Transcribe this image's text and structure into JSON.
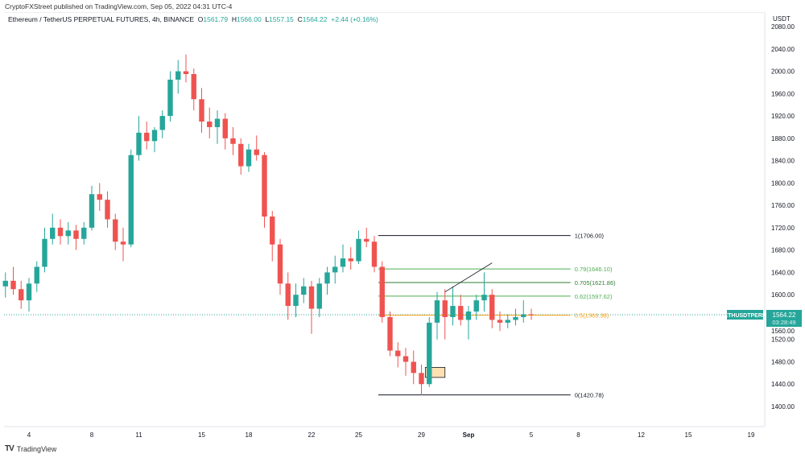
{
  "publisher_line": "CryptoFXStreet published on TradingView.com, Sep 05, 2022 04:31 UTC-4",
  "legend": {
    "symbol": "Ethereum / TetherUS PERPETUAL FUTURES, 4h, BINANCE",
    "o_label": "O",
    "o": "1561.79",
    "h_label": "H",
    "h": "1566.00",
    "l_label": "L",
    "l": "1557.15",
    "c_label": "C",
    "c": "1564.22",
    "change": "+2.44 (+0.16%)"
  },
  "branding": "TradingView",
  "colors": {
    "up": "#26a69a",
    "down": "#ef5350",
    "fib_green": "#4caf50",
    "fib_orange": "#f7a21b",
    "fib_black": "#131722",
    "box": "#ffe0b2"
  },
  "chart_data": {
    "type": "candlestick",
    "currency": "USDT",
    "ylim": [
      1380,
      2090
    ],
    "y_ticks": [
      1400,
      1440,
      1480,
      1520,
      1560,
      1600,
      1640,
      1680,
      1720,
      1760,
      1800,
      1840,
      1880,
      1920,
      1960,
      2000,
      2040,
      2080
    ],
    "x_ticks": [
      {
        "label": "4",
        "t": "Aug 4 00:00"
      },
      {
        "label": "8",
        "t": "Aug 8 00:00"
      },
      {
        "label": "11",
        "t": "Aug 11 00:00"
      },
      {
        "label": "15",
        "t": "Aug 15 00:00"
      },
      {
        "label": "18",
        "t": "Aug 18 00:00"
      },
      {
        "label": "22",
        "t": "Aug 22 00:00"
      },
      {
        "label": "25",
        "t": "Aug 25 00:00"
      },
      {
        "label": "29",
        "t": "Aug 29 00:00"
      },
      {
        "label": "Sep",
        "t": "Sep 1 00:00"
      },
      {
        "label": "5",
        "t": "Sep 5 00:00"
      },
      {
        "label": "8",
        "t": "Sep 8 00:00"
      },
      {
        "label": "12",
        "t": "Sep 12 00:00"
      },
      {
        "label": "15",
        "t": "Sep 15 00:00"
      },
      {
        "label": "19",
        "t": "Sep 19 00:00"
      }
    ],
    "last_price": {
      "symbol": "ETHUSDTPERP",
      "price": "1564.22",
      "countdown": "03:28:49",
      "value": 1564.22
    },
    "fib_levels": [
      {
        "label": "1(1706.00)",
        "value": 1706.0,
        "color": "#131722"
      },
      {
        "label": "0.79(1646.10)",
        "value": 1646.1,
        "color": "#4caf50"
      },
      {
        "label": "0.705(1621.86)",
        "value": 1621.86,
        "color": "#2e7d32"
      },
      {
        "label": "0.62(1597.62)",
        "value": 1597.62,
        "color": "#4caf50"
      },
      {
        "label": "0.5(1563.39)",
        "value": 1563.39,
        "color": "#f7a21b"
      },
      {
        "label": "0(1420.78)",
        "value": 1420.78,
        "color": "#131722"
      }
    ],
    "fib_range": {
      "start": "Aug 26 06:00",
      "end": "Sep 7 12:00"
    },
    "trendline": {
      "from": {
        "t": "Aug 30 12:00",
        "price": 1605
      },
      "to": {
        "t": "Sep 2 12:00",
        "price": 1657
      }
    },
    "box": {
      "from": {
        "t": "Aug 29 06:00",
        "price": 1470
      },
      "to": {
        "t": "Aug 30 12:00",
        "price": 1452
      }
    },
    "candles": [
      {
        "t": "Aug 2 12:00",
        "o": 1615,
        "h": 1640,
        "l": 1595,
        "c": 1625
      },
      {
        "t": "Aug 3 00:00",
        "o": 1625,
        "h": 1650,
        "l": 1600,
        "c": 1610
      },
      {
        "t": "Aug 3 12:00",
        "o": 1610,
        "h": 1625,
        "l": 1575,
        "c": 1590
      },
      {
        "t": "Aug 4 00:00",
        "o": 1590,
        "h": 1630,
        "l": 1570,
        "c": 1620
      },
      {
        "t": "Aug 4 12:00",
        "o": 1620,
        "h": 1660,
        "l": 1605,
        "c": 1650
      },
      {
        "t": "Aug 5 00:00",
        "o": 1650,
        "h": 1720,
        "l": 1640,
        "c": 1700
      },
      {
        "t": "Aug 5 12:00",
        "o": 1700,
        "h": 1745,
        "l": 1690,
        "c": 1720
      },
      {
        "t": "Aug 6 00:00",
        "o": 1720,
        "h": 1735,
        "l": 1690,
        "c": 1705
      },
      {
        "t": "Aug 6 12:00",
        "o": 1705,
        "h": 1730,
        "l": 1690,
        "c": 1715
      },
      {
        "t": "Aug 7 00:00",
        "o": 1715,
        "h": 1725,
        "l": 1680,
        "c": 1700
      },
      {
        "t": "Aug 7 12:00",
        "o": 1700,
        "h": 1730,
        "l": 1690,
        "c": 1720
      },
      {
        "t": "Aug 8 00:00",
        "o": 1720,
        "h": 1795,
        "l": 1715,
        "c": 1780
      },
      {
        "t": "Aug 8 12:00",
        "o": 1780,
        "h": 1800,
        "l": 1750,
        "c": 1770
      },
      {
        "t": "Aug 9 00:00",
        "o": 1770,
        "h": 1785,
        "l": 1720,
        "c": 1735
      },
      {
        "t": "Aug 9 12:00",
        "o": 1735,
        "h": 1745,
        "l": 1680,
        "c": 1695
      },
      {
        "t": "Aug 10 00:00",
        "o": 1695,
        "h": 1720,
        "l": 1660,
        "c": 1690
      },
      {
        "t": "Aug 10 12:00",
        "o": 1690,
        "h": 1860,
        "l": 1685,
        "c": 1850
      },
      {
        "t": "Aug 11 00:00",
        "o": 1850,
        "h": 1920,
        "l": 1840,
        "c": 1890
      },
      {
        "t": "Aug 11 12:00",
        "o": 1890,
        "h": 1910,
        "l": 1860,
        "c": 1875
      },
      {
        "t": "Aug 12 00:00",
        "o": 1875,
        "h": 1900,
        "l": 1855,
        "c": 1895
      },
      {
        "t": "Aug 12 12:00",
        "o": 1895,
        "h": 1930,
        "l": 1880,
        "c": 1920
      },
      {
        "t": "Aug 13 00:00",
        "o": 1920,
        "h": 2000,
        "l": 1910,
        "c": 1985
      },
      {
        "t": "Aug 13 12:00",
        "o": 1985,
        "h": 2020,
        "l": 1960,
        "c": 2000
      },
      {
        "t": "Aug 14 00:00",
        "o": 2000,
        "h": 2030,
        "l": 1980,
        "c": 1995
      },
      {
        "t": "Aug 14 12:00",
        "o": 1995,
        "h": 2005,
        "l": 1930,
        "c": 1950
      },
      {
        "t": "Aug 15 00:00",
        "o": 1950,
        "h": 1970,
        "l": 1890,
        "c": 1910
      },
      {
        "t": "Aug 15 12:00",
        "o": 1910,
        "h": 1935,
        "l": 1880,
        "c": 1900
      },
      {
        "t": "Aug 16 00:00",
        "o": 1900,
        "h": 1930,
        "l": 1870,
        "c": 1915
      },
      {
        "t": "Aug 16 12:00",
        "o": 1915,
        "h": 1925,
        "l": 1860,
        "c": 1880
      },
      {
        "t": "Aug 17 00:00",
        "o": 1880,
        "h": 1900,
        "l": 1850,
        "c": 1870
      },
      {
        "t": "Aug 17 12:00",
        "o": 1870,
        "h": 1880,
        "l": 1815,
        "c": 1830
      },
      {
        "t": "Aug 18 00:00",
        "o": 1830,
        "h": 1870,
        "l": 1820,
        "c": 1860
      },
      {
        "t": "Aug 18 12:00",
        "o": 1860,
        "h": 1885,
        "l": 1840,
        "c": 1850
      },
      {
        "t": "Aug 19 00:00",
        "o": 1850,
        "h": 1855,
        "l": 1720,
        "c": 1740
      },
      {
        "t": "Aug 19 12:00",
        "o": 1740,
        "h": 1750,
        "l": 1660,
        "c": 1690
      },
      {
        "t": "Aug 20 00:00",
        "o": 1690,
        "h": 1700,
        "l": 1600,
        "c": 1620
      },
      {
        "t": "Aug 20 12:00",
        "o": 1620,
        "h": 1640,
        "l": 1555,
        "c": 1580
      },
      {
        "t": "Aug 21 00:00",
        "o": 1580,
        "h": 1620,
        "l": 1560,
        "c": 1600
      },
      {
        "t": "Aug 21 12:00",
        "o": 1600,
        "h": 1630,
        "l": 1585,
        "c": 1615
      },
      {
        "t": "Aug 22 00:00",
        "o": 1615,
        "h": 1625,
        "l": 1530,
        "c": 1575
      },
      {
        "t": "Aug 22 12:00",
        "o": 1575,
        "h": 1630,
        "l": 1560,
        "c": 1620
      },
      {
        "t": "Aug 23 00:00",
        "o": 1620,
        "h": 1650,
        "l": 1600,
        "c": 1640
      },
      {
        "t": "Aug 23 12:00",
        "o": 1640,
        "h": 1670,
        "l": 1620,
        "c": 1650
      },
      {
        "t": "Aug 24 00:00",
        "o": 1650,
        "h": 1690,
        "l": 1640,
        "c": 1665
      },
      {
        "t": "Aug 24 12:00",
        "o": 1665,
        "h": 1685,
        "l": 1645,
        "c": 1660
      },
      {
        "t": "Aug 25 00:00",
        "o": 1660,
        "h": 1715,
        "l": 1655,
        "c": 1700
      },
      {
        "t": "Aug 25 12:00",
        "o": 1700,
        "h": 1720,
        "l": 1685,
        "c": 1695
      },
      {
        "t": "Aug 26 00:00",
        "o": 1695,
        "h": 1705,
        "l": 1640,
        "c": 1650
      },
      {
        "t": "Aug 26 12:00",
        "o": 1650,
        "h": 1660,
        "l": 1550,
        "c": 1560
      },
      {
        "t": "Aug 27 00:00",
        "o": 1560,
        "h": 1570,
        "l": 1490,
        "c": 1500
      },
      {
        "t": "Aug 27 12:00",
        "o": 1500,
        "h": 1515,
        "l": 1470,
        "c": 1490
      },
      {
        "t": "Aug 28 00:00",
        "o": 1490,
        "h": 1505,
        "l": 1455,
        "c": 1480
      },
      {
        "t": "Aug 28 12:00",
        "o": 1480,
        "h": 1500,
        "l": 1440,
        "c": 1460
      },
      {
        "t": "Aug 29 00:00",
        "o": 1460,
        "h": 1475,
        "l": 1420,
        "c": 1440
      },
      {
        "t": "Aug 29 12:00",
        "o": 1440,
        "h": 1560,
        "l": 1435,
        "c": 1550
      },
      {
        "t": "Aug 30 00:00",
        "o": 1550,
        "h": 1605,
        "l": 1520,
        "c": 1590
      },
      {
        "t": "Aug 30 12:00",
        "o": 1590,
        "h": 1610,
        "l": 1520,
        "c": 1560
      },
      {
        "t": "Aug 31 00:00",
        "o": 1560,
        "h": 1615,
        "l": 1545,
        "c": 1580
      },
      {
        "t": "Aug 31 12:00",
        "o": 1580,
        "h": 1600,
        "l": 1545,
        "c": 1555
      },
      {
        "t": "Sep 1 00:00",
        "o": 1555,
        "h": 1580,
        "l": 1520,
        "c": 1570
      },
      {
        "t": "Sep 1 12:00",
        "o": 1570,
        "h": 1600,
        "l": 1555,
        "c": 1590
      },
      {
        "t": "Sep 2 00:00",
        "o": 1590,
        "h": 1640,
        "l": 1570,
        "c": 1600
      },
      {
        "t": "Sep 2 12:00",
        "o": 1600,
        "h": 1610,
        "l": 1540,
        "c": 1555
      },
      {
        "t": "Sep 3 00:00",
        "o": 1555,
        "h": 1570,
        "l": 1535,
        "c": 1550
      },
      {
        "t": "Sep 3 12:00",
        "o": 1550,
        "h": 1565,
        "l": 1540,
        "c": 1555
      },
      {
        "t": "Sep 4 00:00",
        "o": 1555,
        "h": 1575,
        "l": 1545,
        "c": 1560
      },
      {
        "t": "Sep 4 12:00",
        "o": 1560,
        "h": 1590,
        "l": 1550,
        "c": 1565
      },
      {
        "t": "Sep 5 00:00",
        "o": 1565,
        "h": 1575,
        "l": 1555,
        "c": 1564.22
      }
    ]
  }
}
